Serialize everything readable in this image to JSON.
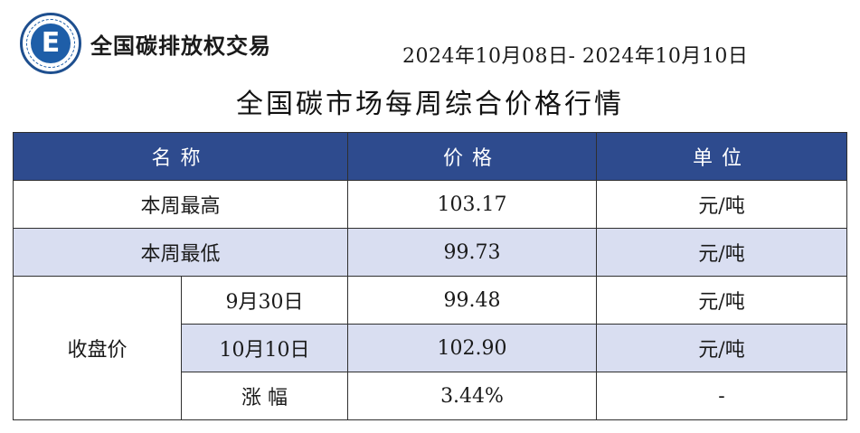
{
  "header": {
    "brand": "全国碳排放权交易",
    "logo_icon": "carbon-exchange-logo-icon",
    "date_range": "2024年10月08日- 2024年10月10日"
  },
  "title": "全国碳市场每周综合价格行情",
  "colors": {
    "header_bg": "#2e4b8e",
    "shaded_row": "#d9def1",
    "logo_blue": "#1e5ea8"
  },
  "table": {
    "headers": {
      "name": "名称",
      "price": "价格",
      "unit": "单位"
    },
    "weekly_high": {
      "label": "本周最高",
      "price": "103.17",
      "unit": "元/吨"
    },
    "weekly_low": {
      "label": "本周最低",
      "price": "99.73",
      "unit": "元/吨"
    },
    "closing": {
      "label": "收盘价",
      "rows": [
        {
          "date": "9月30日",
          "price": "99.48",
          "unit": "元/吨"
        },
        {
          "date": "10月10日",
          "price": "102.90",
          "unit": "元/吨"
        },
        {
          "date": "涨 幅",
          "price": "3.44%",
          "unit": "-"
        }
      ]
    }
  }
}
